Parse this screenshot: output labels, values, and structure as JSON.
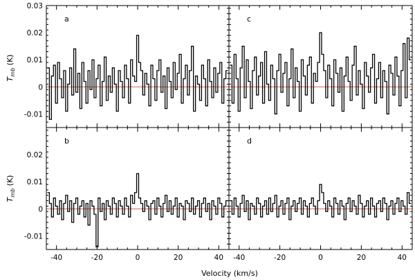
{
  "chart_data": {
    "type": "line",
    "layout": "2x2 grid of step-histogram spectra with shared axes",
    "xlabel": "Velocity (km/s)",
    "ylabel": "T_mb (K)",
    "ylabel_main": "T",
    "ylabel_sub": "mb",
    "ylabel_unit": "(K)",
    "xlim": [
      -45,
      45
    ],
    "x_ticks": [
      -40,
      -20,
      0,
      20,
      40
    ],
    "zero_line_color": "#d24a3a",
    "line_color": "#000000",
    "top_row_ylim": [
      -0.015,
      0.03
    ],
    "top_row_y_ticks": [
      -0.01,
      0,
      0.01,
      0.02,
      0.03
    ],
    "top_row_y_tick_labels": [
      "-0.01",
      "0",
      "0.01",
      "0.02",
      "0.03"
    ],
    "bottom_row_ylim": [
      -0.015,
      0.03
    ],
    "bottom_row_y_ticks": [
      -0.01,
      0,
      0.01,
      0.02
    ],
    "bottom_row_y_tick_labels": [
      "-0.01",
      "0",
      "0.01",
      "0.02"
    ],
    "panels": [
      {
        "label": "a",
        "peak": {
          "x": 0,
          "y": 0.019
        },
        "x": [
          -44,
          -43,
          -42,
          -41,
          -40,
          -39,
          -38,
          -37,
          -36,
          -35,
          -34,
          -33,
          -32,
          -31,
          -30,
          -29,
          -28,
          -27,
          -26,
          -25,
          -24,
          -23,
          -22,
          -21,
          -20,
          -19,
          -18,
          -17,
          -16,
          -15,
          -14,
          -13,
          -12,
          -11,
          -10,
          -9,
          -8,
          -7,
          -6,
          -5,
          -4,
          -3,
          -2,
          -1,
          0,
          1,
          2,
          3,
          4,
          5,
          6,
          7,
          8,
          9,
          10,
          11,
          12,
          13,
          14,
          15,
          16,
          17,
          18,
          19,
          20,
          21,
          22,
          23,
          24,
          25,
          26,
          27,
          28,
          29,
          30,
          31,
          32,
          33,
          34,
          35,
          36,
          37,
          38,
          39,
          40,
          41,
          42,
          43,
          44
        ],
        "y": [
          0.007,
          -0.012,
          0.004,
          0.008,
          -0.006,
          0.009,
          0.003,
          -0.004,
          0.006,
          -0.009,
          0.001,
          0.007,
          -0.003,
          0.014,
          -0.002,
          0.005,
          -0.008,
          0.009,
          0.002,
          -0.006,
          0.006,
          -0.001,
          0.01,
          -0.004,
          0.003,
          0.008,
          -0.007,
          0.002,
          0.011,
          -0.005,
          0.004,
          -0.002,
          0.007,
          0.001,
          -0.009,
          0.006,
          0.002,
          -0.004,
          0.008,
          0.003,
          -0.006,
          0.01,
          0.004,
          0.002,
          0.019,
          0.009,
          0.006,
          -0.003,
          0.005,
          0.001,
          -0.007,
          0.008,
          0.003,
          -0.005,
          0.006,
          0.01,
          -0.002,
          0.004,
          -0.008,
          0.007,
          0.002,
          -0.004,
          0.009,
          -0.001,
          0.005,
          0.012,
          -0.006,
          0.003,
          0.008,
          -0.003,
          0.006,
          0.015,
          -0.009,
          0.004,
          0.001,
          -0.005,
          0.008,
          0.003,
          -0.007,
          0.01,
          0.002,
          -0.004,
          0.007,
          -0.002,
          0.005,
          0.009,
          -0.006,
          0.003,
          0.006
        ]
      },
      {
        "label": "c",
        "peak": {
          "x": 0,
          "y": 0.02
        },
        "x": [
          -44,
          -43,
          -42,
          -41,
          -40,
          -39,
          -38,
          -37,
          -36,
          -35,
          -34,
          -33,
          -32,
          -31,
          -30,
          -29,
          -28,
          -27,
          -26,
          -25,
          -24,
          -23,
          -22,
          -21,
          -20,
          -19,
          -18,
          -17,
          -16,
          -15,
          -14,
          -13,
          -12,
          -11,
          -10,
          -9,
          -8,
          -7,
          -6,
          -5,
          -4,
          -3,
          -2,
          -1,
          0,
          1,
          2,
          3,
          4,
          5,
          6,
          7,
          8,
          9,
          10,
          11,
          12,
          13,
          14,
          15,
          16,
          17,
          18,
          19,
          20,
          21,
          22,
          23,
          24,
          25,
          26,
          27,
          28,
          29,
          30,
          31,
          32,
          33,
          34,
          35,
          36,
          37,
          38,
          39,
          40,
          41,
          42,
          43,
          44
        ],
        "y": [
          0.008,
          -0.006,
          0.012,
          0.003,
          -0.009,
          0.007,
          0.015,
          -0.004,
          0.01,
          0.002,
          -0.008,
          0.006,
          0.011,
          -0.003,
          0.004,
          0.009,
          -0.006,
          0.013,
          0.001,
          -0.005,
          0.008,
          0.003,
          -0.01,
          0.006,
          0.012,
          -0.002,
          0.005,
          0.009,
          -0.007,
          0.003,
          0.014,
          -0.004,
          0.007,
          0.002,
          -0.009,
          0.01,
          0.004,
          -0.003,
          0.008,
          0.011,
          -0.006,
          0.005,
          0.002,
          0.009,
          0.02,
          0.012,
          0.006,
          -0.004,
          0.008,
          0.003,
          -0.007,
          0.01,
          0.005,
          -0.002,
          0.007,
          -0.009,
          0.004,
          0.011,
          0.002,
          -0.005,
          0.008,
          0.015,
          -0.003,
          0.006,
          0.001,
          -0.008,
          0.009,
          0.004,
          -0.002,
          0.007,
          0.012,
          -0.006,
          0.003,
          0.009,
          -0.004,
          0.006,
          0.002,
          -0.01,
          0.008,
          0.005,
          -0.003,
          0.011,
          0.004,
          -0.007,
          0.006,
          0.016,
          -0.004,
          0.018,
          0.01
        ]
      },
      {
        "label": "b",
        "peak": {
          "x": 0,
          "y": 0.013
        },
        "x": [
          -44,
          -43,
          -42,
          -41,
          -40,
          -39,
          -38,
          -37,
          -36,
          -35,
          -34,
          -33,
          -32,
          -31,
          -30,
          -29,
          -28,
          -27,
          -26,
          -25,
          -24,
          -23,
          -22,
          -21,
          -20,
          -19,
          -18,
          -17,
          -16,
          -15,
          -14,
          -13,
          -12,
          -11,
          -10,
          -9,
          -8,
          -7,
          -6,
          -5,
          -4,
          -3,
          -2,
          -1,
          0,
          1,
          2,
          3,
          4,
          5,
          6,
          7,
          8,
          9,
          10,
          11,
          12,
          13,
          14,
          15,
          16,
          17,
          18,
          19,
          20,
          21,
          22,
          23,
          24,
          25,
          26,
          27,
          28,
          29,
          30,
          31,
          32,
          33,
          34,
          35,
          36,
          37,
          38,
          39,
          40,
          41,
          42,
          43,
          44
        ],
        "y": [
          0.006,
          0.002,
          -0.003,
          0.004,
          0.001,
          -0.002,
          0.003,
          -0.004,
          0.002,
          0.005,
          -0.001,
          0.003,
          -0.005,
          0.002,
          0.004,
          -0.002,
          0.001,
          0.003,
          -0.003,
          0.002,
          -0.006,
          0.003,
          0.001,
          -0.002,
          -0.014,
          0.004,
          -0.001,
          0.002,
          -0.004,
          0.003,
          0.001,
          -0.002,
          0.004,
          0.002,
          -0.003,
          0.003,
          0.001,
          -0.002,
          0.004,
          0.001,
          -0.003,
          0.005,
          0.002,
          0.006,
          0.013,
          0.004,
          0.002,
          -0.001,
          0.003,
          0.001,
          -0.004,
          0.002,
          0.003,
          -0.002,
          0.004,
          0.001,
          -0.003,
          0.002,
          0.005,
          -0.001,
          0.003,
          -0.002,
          0.001,
          0.004,
          -0.003,
          0.002,
          0.001,
          -0.004,
          0.003,
          0.002,
          -0.001,
          0.004,
          -0.002,
          0.001,
          0.003,
          -0.003,
          0.002,
          0.004,
          -0.001,
          0.002,
          -0.004,
          0.003,
          0.001,
          -0.002,
          0.004,
          0.002,
          -0.003,
          0.001,
          0.003
        ]
      },
      {
        "label": "d",
        "peak": {
          "x": 0,
          "y": 0.009
        },
        "x": [
          -44,
          -43,
          -42,
          -41,
          -40,
          -39,
          -38,
          -37,
          -36,
          -35,
          -34,
          -33,
          -32,
          -31,
          -30,
          -29,
          -28,
          -27,
          -26,
          -25,
          -24,
          -23,
          -22,
          -21,
          -20,
          -19,
          -18,
          -17,
          -16,
          -15,
          -14,
          -13,
          -12,
          -11,
          -10,
          -9,
          -8,
          -7,
          -6,
          -5,
          -4,
          -3,
          -2,
          -1,
          0,
          1,
          2,
          3,
          4,
          5,
          6,
          7,
          8,
          9,
          10,
          11,
          12,
          13,
          14,
          15,
          16,
          17,
          18,
          19,
          20,
          21,
          22,
          23,
          24,
          25,
          26,
          27,
          28,
          29,
          30,
          31,
          32,
          33,
          34,
          35,
          36,
          37,
          38,
          39,
          40,
          41,
          42,
          43,
          44
        ],
        "y": [
          0.003,
          -0.002,
          0.004,
          0.001,
          -0.003,
          0.002,
          0.005,
          -0.001,
          0.003,
          -0.004,
          0.002,
          0.001,
          -0.002,
          0.004,
          0.002,
          -0.003,
          0.001,
          0.003,
          -0.002,
          0.004,
          -0.001,
          0.002,
          0.005,
          -0.003,
          0.001,
          0.003,
          -0.002,
          0.002,
          0.004,
          -0.004,
          0.001,
          0.003,
          -0.001,
          0.002,
          0.004,
          -0.002,
          0.003,
          0.001,
          -0.003,
          0.002,
          0.004,
          0.001,
          -0.002,
          0.003,
          0.009,
          0.006,
          0.002,
          -0.001,
          0.003,
          0.001,
          -0.003,
          0.004,
          0.002,
          -0.002,
          0.003,
          0.001,
          -0.004,
          0.002,
          0.004,
          -0.001,
          0.003,
          0.001,
          -0.002,
          0.005,
          0.002,
          -0.003,
          0.001,
          0.003,
          -0.002,
          0.004,
          0.001,
          -0.003,
          0.002,
          0.003,
          -0.001,
          0.004,
          0.002,
          -0.004,
          0.001,
          0.003,
          -0.002,
          0.002,
          0.004,
          -0.001,
          0.003,
          0.001,
          -0.002,
          0.006,
          0.002
        ]
      }
    ]
  }
}
